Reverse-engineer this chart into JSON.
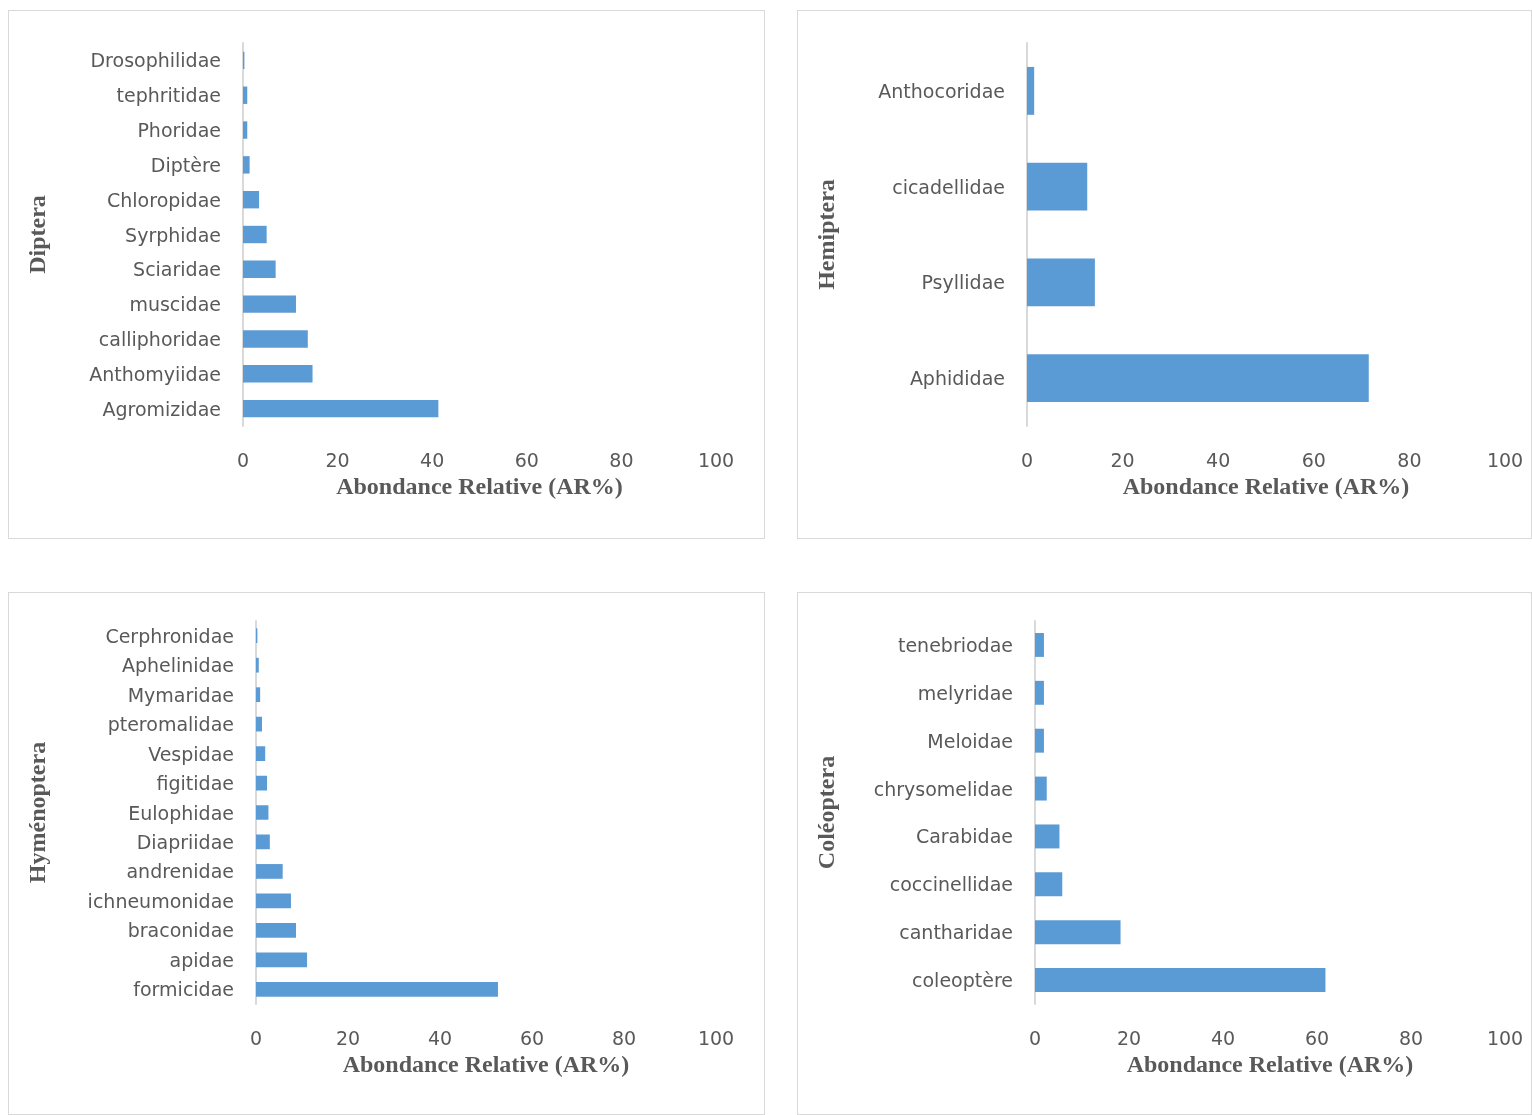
{
  "chart_data": [
    {
      "type": "bar",
      "orientation": "horizontal",
      "ylabel": "Diptera",
      "xlabel": "Abondance Relative (AR%)",
      "categories": [
        "Drosophilidae",
        "tephritidae",
        "Phoridae",
        "Diptère",
        "Chloropidae",
        "Syrphidae",
        "Sciaridae",
        "muscidae",
        "calliphoridae",
        "Anthomyiidae",
        "Agromizidae"
      ],
      "values": [
        0.3,
        0.9,
        0.9,
        1.4,
        3.4,
        5.0,
        6.9,
        11.2,
        13.7,
        14.7,
        41.3
      ],
      "color": "#5b9bd5",
      "xlim": [
        0,
        100
      ],
      "xticks": [
        0,
        20,
        40,
        60,
        80,
        100
      ],
      "grid": false
    },
    {
      "type": "bar",
      "orientation": "horizontal",
      "ylabel": "Hemiptera",
      "xlabel": "Abondance Relative (AR%)",
      "categories": [
        "Anthocoridae",
        "cicadellidae",
        "Psyllidae",
        "Aphididae"
      ],
      "values": [
        1.5,
        12.6,
        14.2,
        71.5
      ],
      "color": "#5b9bd5",
      "xlim": [
        0,
        100
      ],
      "xticks": [
        0,
        20,
        40,
        60,
        80,
        100
      ],
      "grid": false
    },
    {
      "type": "bar",
      "orientation": "horizontal",
      "ylabel": "Hyménoptera",
      "xlabel": "Abondance Relative (AR%)",
      "categories": [
        "Cerphronidae",
        "Aphelinidae",
        "Mymaridae",
        "pteromalidae",
        "Vespidae",
        "figitidae",
        "Eulophidae",
        "Diapriidae",
        "andrenidae",
        "ichneumonidae",
        "braconidae",
        "apidae",
        "formicidae"
      ],
      "values": [
        0.3,
        0.6,
        0.9,
        1.3,
        2.0,
        2.4,
        2.7,
        3.0,
        5.8,
        7.6,
        8.7,
        11.1,
        52.6
      ],
      "color": "#5b9bd5",
      "xlim": [
        0,
        100
      ],
      "xticks": [
        0,
        20,
        40,
        60,
        80,
        100
      ],
      "grid": false
    },
    {
      "type": "bar",
      "orientation": "horizontal",
      "ylabel": "Coléoptera",
      "xlabel": "Abondance Relative (AR%)",
      "categories": [
        "tenebriodae",
        "melyridae",
        "Meloidae",
        "chrysomelidae",
        "Carabidae",
        "coccinellidae",
        "cantharidae",
        "coleoptère"
      ],
      "values": [
        1.9,
        1.9,
        1.9,
        2.5,
        5.2,
        5.8,
        18.2,
        61.8
      ],
      "color": "#5b9bd5",
      "xlim": [
        0,
        100
      ],
      "xticks": [
        0,
        20,
        40,
        60,
        80,
        100
      ],
      "grid": false
    }
  ]
}
